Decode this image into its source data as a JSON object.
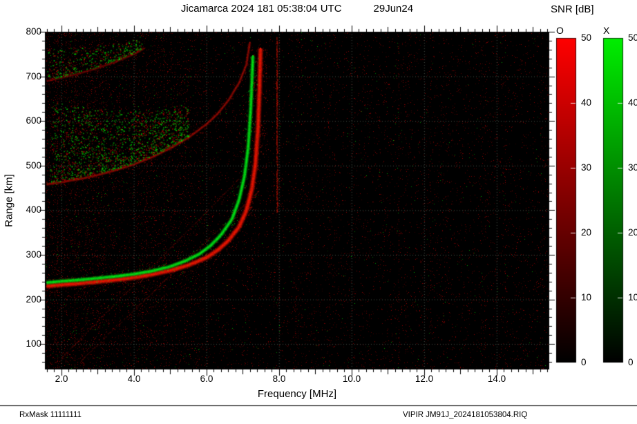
{
  "header": {
    "title": "Jicamarca 2024 181 05:38:04 UTC",
    "date": "29Jun24"
  },
  "footer": {
    "left": "RxMask 11111111",
    "right": "VIPIR  JM91J_2024181053804.RIQ"
  },
  "chart_data": {
    "type": "heatmap",
    "description": "VIPIR ionogram: echo SNR versus sounding frequency and virtual range. O-mode echoes in red, X-mode echoes in green over a black background with speckle noise.",
    "station": "Jicamarca",
    "timestamp": "2024 181 05:38:04 UTC",
    "xlabel": "Frequency [MHz]",
    "ylabel": "Range [km]",
    "xlim": [
      1.55,
      15.45
    ],
    "ylim": [
      43,
      800
    ],
    "grid": true,
    "background_color": "#000000",
    "grid_color": "rgba(150,170,150,0.5)",
    "x_ticks": [
      2,
      4,
      6,
      8,
      10,
      12,
      14
    ],
    "x_tick_labels": [
      "2.0",
      "4.0",
      "6.0",
      "8.0",
      "10.0",
      "12.0",
      "14.0"
    ],
    "minor_tick_step_mhz": 0.2,
    "y_ticks": [
      100,
      200,
      300,
      400,
      500,
      600,
      700,
      800
    ],
    "minor_tick_step_km": 20,
    "colorbars": {
      "title": "SNR [dB]",
      "ticks": [
        0,
        10,
        20,
        30,
        40,
        50
      ],
      "o": {
        "label": "O",
        "bottom_color": "#000000",
        "top_color": "#ff0000"
      },
      "x": {
        "label": "X",
        "bottom_color": "#000000",
        "top_color": "#00ee00"
      }
    },
    "series": [
      {
        "name": "F-layer O-mode trace",
        "mode": "O",
        "color": "255,25,0",
        "critical_frequency_mhz": 7.5,
        "points": [
          [
            1.6,
            230
          ],
          [
            2.0,
            233
          ],
          [
            2.5,
            236
          ],
          [
            3.0,
            240
          ],
          [
            3.5,
            244
          ],
          [
            4.0,
            249
          ],
          [
            4.5,
            256
          ],
          [
            5.0,
            265
          ],
          [
            5.5,
            277
          ],
          [
            6.0,
            294
          ],
          [
            6.3,
            310
          ],
          [
            6.6,
            332
          ],
          [
            6.9,
            363
          ],
          [
            7.1,
            400
          ],
          [
            7.25,
            447
          ],
          [
            7.35,
            505
          ],
          [
            7.42,
            585
          ],
          [
            7.46,
            670
          ],
          [
            7.49,
            765
          ]
        ]
      },
      {
        "name": "F-layer X-mode trace",
        "mode": "X",
        "color": "0,240,25",
        "critical_frequency_mhz": 7.3,
        "points": [
          [
            1.6,
            238
          ],
          [
            2.0,
            241
          ],
          [
            2.5,
            244
          ],
          [
            3.0,
            248
          ],
          [
            3.5,
            252
          ],
          [
            4.0,
            257
          ],
          [
            4.5,
            264
          ],
          [
            5.0,
            274
          ],
          [
            5.4,
            286
          ],
          [
            5.8,
            302
          ],
          [
            6.1,
            320
          ],
          [
            6.4,
            345
          ],
          [
            6.7,
            380
          ],
          [
            6.9,
            424
          ],
          [
            7.05,
            478
          ],
          [
            7.15,
            542
          ],
          [
            7.22,
            628
          ],
          [
            7.28,
            748
          ]
        ]
      },
      {
        "name": "Second-hop O-mode trace",
        "mode": "O",
        "color": "205,18,0",
        "points": [
          [
            1.6,
            458
          ],
          [
            2.0,
            463
          ],
          [
            2.5,
            470
          ],
          [
            3.0,
            479
          ],
          [
            3.5,
            490
          ],
          [
            4.0,
            503
          ],
          [
            4.5,
            519
          ],
          [
            5.0,
            539
          ],
          [
            5.5,
            563
          ],
          [
            6.0,
            593
          ],
          [
            6.3,
            616
          ],
          [
            6.6,
            646
          ],
          [
            6.9,
            686
          ],
          [
            7.1,
            727
          ],
          [
            7.2,
            778
          ]
        ]
      },
      {
        "name": "Third-hop O-mode trace",
        "mode": "O",
        "color": "190,15,0",
        "points": [
          [
            1.6,
            690
          ],
          [
            2.0,
            697
          ],
          [
            2.5,
            707
          ],
          [
            3.0,
            719
          ],
          [
            3.5,
            733
          ],
          [
            4.0,
            750
          ],
          [
            4.3,
            764
          ]
        ]
      }
    ],
    "features": {
      "spread_clouds": [
        {
          "above_series": 2,
          "freq_range": [
            1.7,
            5.5
          ],
          "max_height_km": 185,
          "count": 1500,
          "color": "green-red speckle"
        },
        {
          "above_series": 3,
          "freq_range": [
            1.6,
            4.2
          ],
          "max_height_km": 70,
          "count": 380,
          "color": "green-red speckle"
        }
      ],
      "rfi_streaks": [
        {
          "freq": 7.93,
          "range_km": [
            395,
            788
          ]
        }
      ],
      "oblique_echo_lines": [
        {
          "from": [
            2.0,
            70
          ],
          "to": [
            7.0,
            480
          ]
        },
        {
          "from": [
            2.55,
            65
          ],
          "to": [
            7.45,
            445
          ]
        }
      ],
      "noise": {
        "base_density": 0.05,
        "left_density": 0.14,
        "green_fraction": 0.04
      }
    }
  }
}
